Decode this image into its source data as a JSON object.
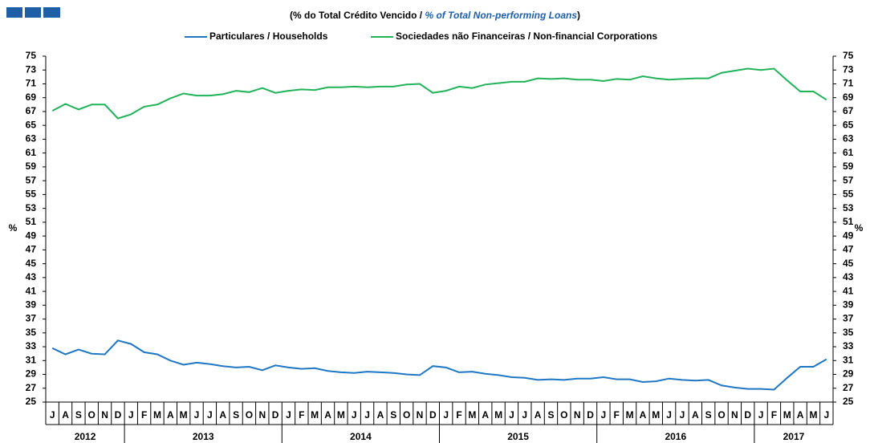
{
  "chart_data": {
    "type": "line",
    "title": [
      "(% do Total Crédito Vencido / ",
      "% of Total Non-performing Loans",
      ")"
    ],
    "y_label": "%",
    "y2_label": "%",
    "categories": [
      "J",
      "A",
      "S",
      "O",
      "N",
      "D",
      "J",
      "F",
      "M",
      "A",
      "M",
      "J",
      "J",
      "A",
      "S",
      "O",
      "N",
      "D",
      "J",
      "F",
      "M",
      "A",
      "M",
      "J",
      "J",
      "A",
      "S",
      "O",
      "N",
      "D",
      "J",
      "F",
      "M",
      "A",
      "M",
      "J",
      "J",
      "A",
      "S",
      "O",
      "N",
      "D",
      "J",
      "F",
      "M",
      "A",
      "M",
      "J",
      "J",
      "A",
      "S",
      "O",
      "N",
      "D",
      "J",
      "F",
      "M",
      "A",
      "M",
      "J"
    ],
    "year_groups": [
      {
        "label": "2012",
        "count": 6
      },
      {
        "label": "2013",
        "count": 12
      },
      {
        "label": "2014",
        "count": 12
      },
      {
        "label": "2015",
        "count": 12
      },
      {
        "label": "2016",
        "count": 12
      },
      {
        "label": "2017",
        "count": 6
      }
    ],
    "series": [
      {
        "name": "Particulares / Households",
        "color": "#1f77c4",
        "values": [
          32.8,
          31.9,
          32.6,
          32.0,
          31.9,
          33.9,
          33.4,
          32.2,
          31.9,
          31.0,
          30.4,
          30.7,
          30.5,
          30.2,
          30.0,
          30.1,
          29.6,
          30.3,
          30.0,
          29.8,
          29.9,
          29.5,
          29.3,
          29.2,
          29.4,
          29.3,
          29.2,
          29.0,
          28.9,
          30.2,
          30.0,
          29.3,
          29.4,
          29.1,
          28.9,
          28.6,
          28.5,
          28.2,
          28.3,
          28.2,
          28.4,
          28.4,
          28.6,
          28.3,
          28.3,
          27.9,
          28.0,
          28.4,
          28.2,
          28.1,
          28.2,
          27.4,
          27.1,
          26.9,
          26.9,
          26.8,
          28.5,
          30.1,
          30.1,
          31.2
        ]
      },
      {
        "name": "Sociedades não Financeiras / Non-financial Corporations",
        "color": "#22b35a",
        "values": [
          67.1,
          68.1,
          67.3,
          68.0,
          68.0,
          66.0,
          66.6,
          67.7,
          68.0,
          68.9,
          69.6,
          69.3,
          69.3,
          69.5,
          70.0,
          69.8,
          70.4,
          69.7,
          70.0,
          70.2,
          70.1,
          70.5,
          70.5,
          70.6,
          70.5,
          70.6,
          70.6,
          70.9,
          71.0,
          69.7,
          70.0,
          70.6,
          70.4,
          70.9,
          71.1,
          71.3,
          71.3,
          71.8,
          71.7,
          71.8,
          71.6,
          71.6,
          71.4,
          71.7,
          71.6,
          72.1,
          71.8,
          71.6,
          71.7,
          71.8,
          71.8,
          72.6,
          72.9,
          73.2,
          73.0,
          73.2,
          71.5,
          69.9,
          69.9,
          68.7
        ]
      }
    ],
    "ylim": [
      25,
      75
    ],
    "yticks": [
      25,
      27,
      29,
      31,
      33,
      35,
      37,
      39,
      41,
      43,
      45,
      47,
      49,
      51,
      53,
      55,
      57,
      59,
      61,
      63,
      65,
      67,
      69,
      71,
      73,
      75
    ],
    "y2lim": [
      25,
      75
    ],
    "y2ticks": [
      25,
      27,
      29,
      31,
      33,
      35,
      37,
      39,
      41,
      43,
      45,
      47,
      49,
      51,
      53,
      55,
      57,
      59,
      61,
      63,
      65,
      67,
      69,
      71,
      73,
      75
    ],
    "legend": "top",
    "grid": false
  }
}
